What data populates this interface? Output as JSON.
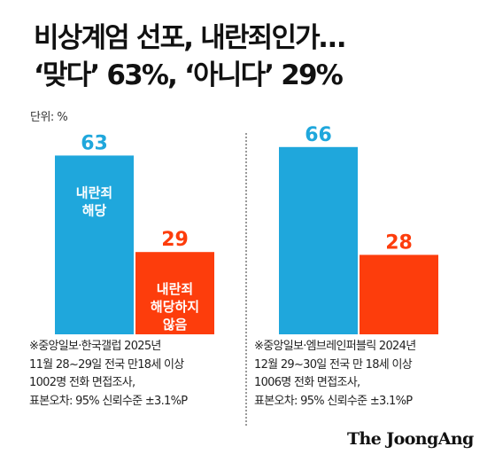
{
  "title": {
    "line1": "비상계엄 선포, 내란죄인가…",
    "line2": "‘맞다’ 63%, ‘아니다’ 29%"
  },
  "unit_label": "단위: %",
  "colors": {
    "blue": "#1fa7dc",
    "orange": "#fd3d0c",
    "value_blue": "#1fa7dc",
    "value_orange": "#fd3d0c",
    "inside_text": "#ffffff"
  },
  "chart_data": [
    {
      "type": "bar",
      "source": "※중앙일보·한국갤럽 2025년",
      "ylim": [
        0,
        70
      ],
      "bars": [
        {
          "value": 63,
          "color_key": "blue",
          "label_lines": [
            "내란죄",
            "해당"
          ]
        },
        {
          "value": 29,
          "color_key": "orange",
          "label_lines": [
            "내란죄",
            "해당하지",
            "않음"
          ]
        }
      ]
    },
    {
      "type": "bar",
      "source": "※중앙일보·엠브레인퍼블릭 2024년",
      "ylim": [
        0,
        70
      ],
      "bars": [
        {
          "value": 66,
          "color_key": "blue",
          "label_lines": []
        },
        {
          "value": 28,
          "color_key": "orange",
          "label_lines": []
        }
      ]
    }
  ],
  "notes": {
    "left": [
      "※중앙일보·한국갤럽 2025년",
      "11월 28~29일 전국 만18세 이상",
      "1002명 전화 면접조사,",
      "표본오차: 95% 신뢰수준 ±3.1%P"
    ],
    "right": [
      "※중앙일보·엠브레인퍼블릭 2024년",
      "12월 29~30일 전국 만 18세 이상",
      "1006명 전화 면접조사,",
      "표본오차: 95% 신뢰수준 ±3.1%P"
    ]
  },
  "brand": "The JoongAng"
}
